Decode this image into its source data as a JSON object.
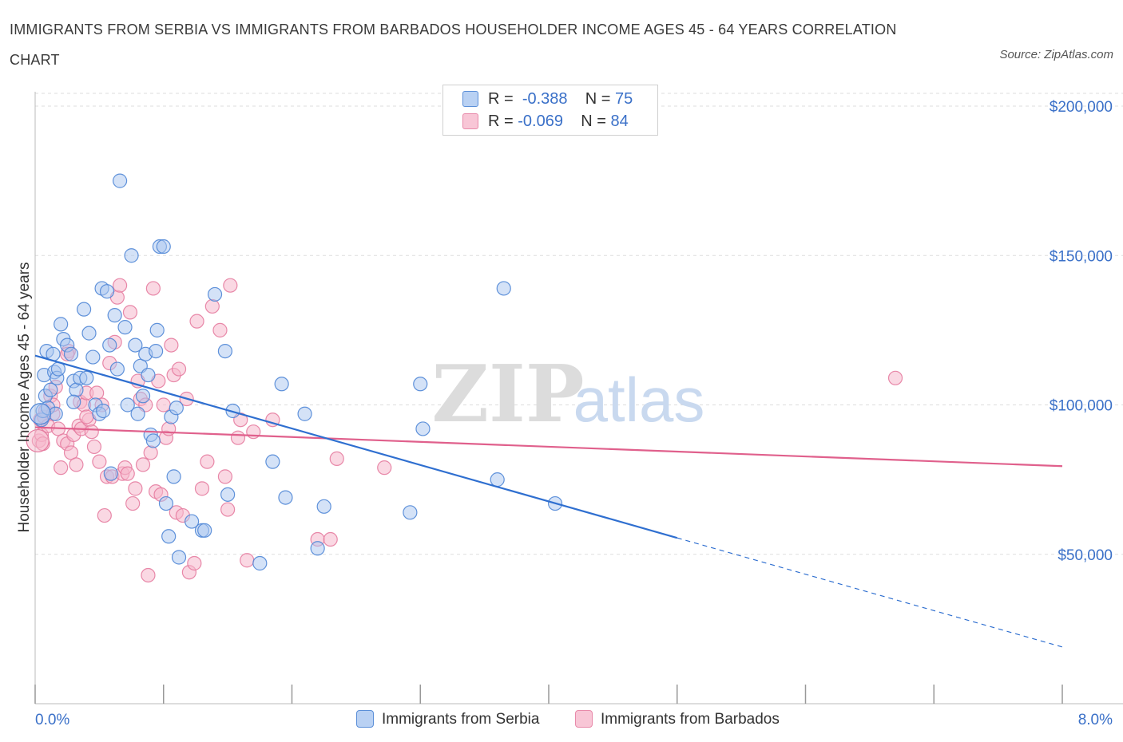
{
  "title": "IMMIGRANTS FROM SERBIA VS IMMIGRANTS FROM BARBADOS HOUSEHOLDER INCOME AGES 45 - 64 YEARS CORRELATION CHART",
  "source": "Source: ZipAtlas.com",
  "watermark": {
    "zip": "ZIP",
    "atlas": "atlas"
  },
  "legend_top": {
    "serbia": {
      "r_label": "R =",
      "r_value": "-0.388",
      "n_label": "N =",
      "n_value": "75"
    },
    "barbados": {
      "r_label": "R =",
      "r_value": "-0.069",
      "n_label": "N =",
      "n_value": "84"
    }
  },
  "legend_bottom": {
    "serbia": "Immigrants from Serbia",
    "barbados": "Immigrants from Barbados"
  },
  "colors": {
    "serbia_fill": "#a9c6f0",
    "serbia_stroke": "#4f86d6",
    "serbia_line": "#2f6fd0",
    "barbados_fill": "#f6b8cc",
    "barbados_stroke": "#e57ca0",
    "barbados_line": "#e0608c",
    "axis_label": "#3a70c8",
    "grid": "#dddddd"
  },
  "chart_data": {
    "type": "scatter",
    "ylabel": "Householder Income Ages 45 - 64 years",
    "xlim": [
      0.0,
      8.0
    ],
    "ylim": [
      0,
      200000
    ],
    "x_tick_labels": [
      "0.0%",
      "8.0%"
    ],
    "y_ticks": [
      50000,
      100000,
      150000,
      200000
    ],
    "y_tick_labels": [
      "$50,000",
      "$100,000",
      "$150,000",
      "$200,000"
    ],
    "grid": true,
    "series": [
      {
        "name": "Immigrants from Serbia",
        "trend": {
          "x": [
            0.0,
            5.0
          ],
          "y": [
            116500,
            55500
          ],
          "dashed_x": [
            5.0,
            8.0
          ],
          "dashed_y": [
            55500,
            19000
          ]
        },
        "points": [
          [
            0.05,
            95000
          ],
          [
            0.06,
            98000
          ],
          [
            0.07,
            110000
          ],
          [
            0.08,
            103000
          ],
          [
            0.09,
            118000
          ],
          [
            0.1,
            99000
          ],
          [
            0.12,
            105000
          ],
          [
            0.14,
            117000
          ],
          [
            0.15,
            111000
          ],
          [
            0.17,
            109000
          ],
          [
            0.2,
            127000
          ],
          [
            0.22,
            122000
          ],
          [
            0.25,
            120000
          ],
          [
            0.28,
            117000
          ],
          [
            0.3,
            108000
          ],
          [
            0.32,
            105000
          ],
          [
            0.35,
            109000
          ],
          [
            0.38,
            132000
          ],
          [
            0.4,
            109000
          ],
          [
            0.42,
            124000
          ],
          [
            0.45,
            116000
          ],
          [
            0.47,
            100000
          ],
          [
            0.5,
            97000
          ],
          [
            0.52,
            139000
          ],
          [
            0.53,
            98000
          ],
          [
            0.56,
            138000
          ],
          [
            0.58,
            120000
          ],
          [
            0.59,
            77000
          ],
          [
            0.62,
            130000
          ],
          [
            0.64,
            112000
          ],
          [
            0.66,
            175000
          ],
          [
            0.7,
            126000
          ],
          [
            0.72,
            100000
          ],
          [
            0.75,
            150000
          ],
          [
            0.78,
            120000
          ],
          [
            0.8,
            97000
          ],
          [
            0.82,
            113000
          ],
          [
            0.84,
            103000
          ],
          [
            0.86,
            117000
          ],
          [
            0.88,
            110000
          ],
          [
            0.9,
            90000
          ],
          [
            0.92,
            88000
          ],
          [
            0.94,
            118000
          ],
          [
            0.95,
            125000
          ],
          [
            0.97,
            153000
          ],
          [
            1.0,
            153000
          ],
          [
            1.02,
            67000
          ],
          [
            1.04,
            56000
          ],
          [
            1.06,
            96000
          ],
          [
            1.08,
            76000
          ],
          [
            1.1,
            99000
          ],
          [
            1.12,
            49000
          ],
          [
            1.22,
            61000
          ],
          [
            1.3,
            58000
          ],
          [
            1.32,
            58000
          ],
          [
            1.4,
            137000
          ],
          [
            1.48,
            118000
          ],
          [
            1.5,
            70000
          ],
          [
            1.54,
            98000
          ],
          [
            1.75,
            47000
          ],
          [
            1.85,
            81000
          ],
          [
            1.92,
            107000
          ],
          [
            1.95,
            69000
          ],
          [
            2.1,
            97000
          ],
          [
            2.2,
            52000
          ],
          [
            2.25,
            66000
          ],
          [
            2.92,
            64000
          ],
          [
            3.0,
            107000
          ],
          [
            3.02,
            92000
          ],
          [
            3.6,
            75000
          ],
          [
            3.65,
            139000
          ],
          [
            4.05,
            67000
          ],
          [
            0.18,
            112000
          ],
          [
            0.3,
            101000
          ],
          [
            0.16,
            97000
          ]
        ]
      },
      {
        "name": "Immigrants from Barbados",
        "trend": {
          "x": [
            0.0,
            8.0
          ],
          "y": [
            92500,
            79500
          ]
        },
        "points": [
          [
            0.03,
            88000
          ],
          [
            0.04,
            95000
          ],
          [
            0.05,
            90000
          ],
          [
            0.06,
            87000
          ],
          [
            0.07,
            96000
          ],
          [
            0.08,
            98000
          ],
          [
            0.1,
            93000
          ],
          [
            0.12,
            103000
          ],
          [
            0.14,
            97000
          ],
          [
            0.16,
            106000
          ],
          [
            0.18,
            92000
          ],
          [
            0.2,
            79000
          ],
          [
            0.22,
            88000
          ],
          [
            0.25,
            87000
          ],
          [
            0.26,
            118000
          ],
          [
            0.28,
            84000
          ],
          [
            0.3,
            90000
          ],
          [
            0.32,
            80000
          ],
          [
            0.34,
            93000
          ],
          [
            0.35,
            101000
          ],
          [
            0.36,
            92000
          ],
          [
            0.38,
            100000
          ],
          [
            0.4,
            104000
          ],
          [
            0.42,
            95000
          ],
          [
            0.44,
            91000
          ],
          [
            0.46,
            86000
          ],
          [
            0.48,
            104000
          ],
          [
            0.5,
            81000
          ],
          [
            0.52,
            100000
          ],
          [
            0.54,
            63000
          ],
          [
            0.56,
            76000
          ],
          [
            0.58,
            114000
          ],
          [
            0.6,
            76000
          ],
          [
            0.62,
            121000
          ],
          [
            0.64,
            136000
          ],
          [
            0.66,
            140000
          ],
          [
            0.68,
            77000
          ],
          [
            0.7,
            79000
          ],
          [
            0.72,
            77000
          ],
          [
            0.74,
            131000
          ],
          [
            0.76,
            67000
          ],
          [
            0.78,
            72000
          ],
          [
            0.8,
            108000
          ],
          [
            0.82,
            102000
          ],
          [
            0.84,
            80000
          ],
          [
            0.86,
            100000
          ],
          [
            0.88,
            43000
          ],
          [
            0.9,
            84000
          ],
          [
            0.92,
            139000
          ],
          [
            0.94,
            71000
          ],
          [
            0.96,
            108000
          ],
          [
            0.98,
            70000
          ],
          [
            1.0,
            100000
          ],
          [
            1.02,
            89000
          ],
          [
            1.04,
            92000
          ],
          [
            1.06,
            120000
          ],
          [
            1.08,
            110000
          ],
          [
            1.1,
            64000
          ],
          [
            1.12,
            112000
          ],
          [
            1.15,
            63000
          ],
          [
            1.18,
            102000
          ],
          [
            1.2,
            44000
          ],
          [
            1.24,
            47000
          ],
          [
            1.26,
            128000
          ],
          [
            1.3,
            72000
          ],
          [
            1.34,
            81000
          ],
          [
            1.38,
            133000
          ],
          [
            1.44,
            125000
          ],
          [
            1.48,
            76000
          ],
          [
            1.52,
            140000
          ],
          [
            1.58,
            89000
          ],
          [
            1.6,
            95000
          ],
          [
            1.65,
            48000
          ],
          [
            1.7,
            91000
          ],
          [
            1.85,
            95000
          ],
          [
            2.2,
            55000
          ],
          [
            2.3,
            55000
          ],
          [
            2.35,
            82000
          ],
          [
            2.72,
            79000
          ],
          [
            6.7,
            109000
          ],
          [
            1.5,
            65000
          ],
          [
            0.4,
            96000
          ],
          [
            0.25,
            117000
          ],
          [
            0.14,
            100000
          ]
        ]
      }
    ]
  }
}
